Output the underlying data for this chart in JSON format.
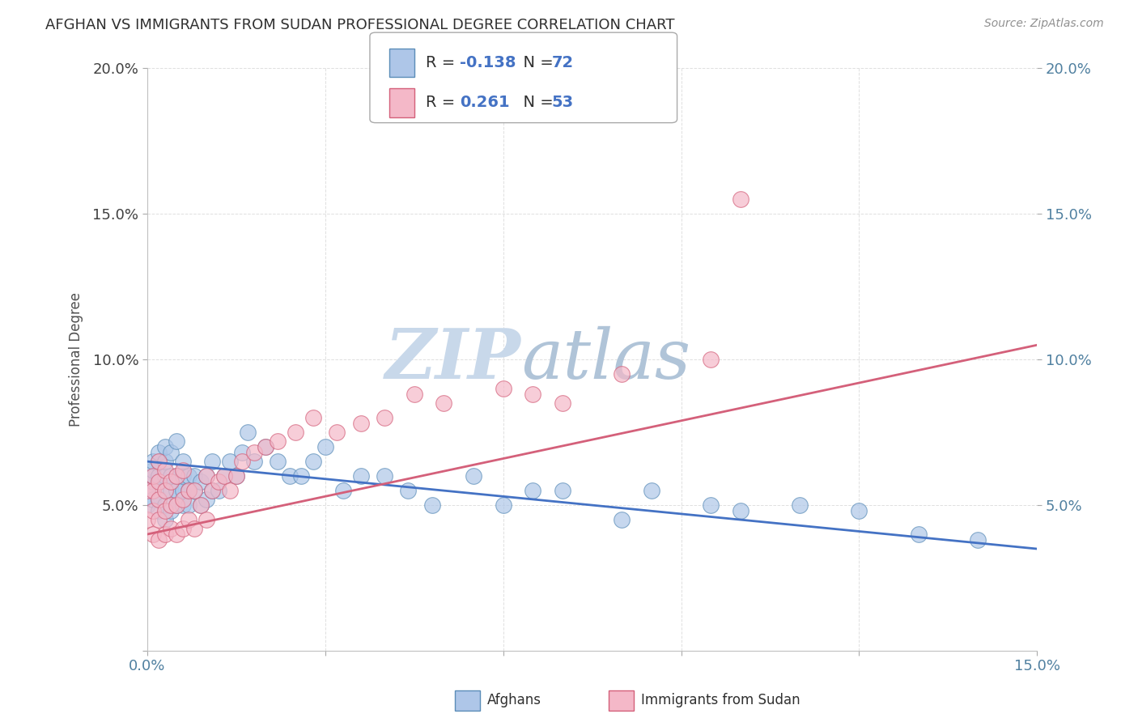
{
  "title": "AFGHAN VS IMMIGRANTS FROM SUDAN PROFESSIONAL DEGREE CORRELATION CHART",
  "source": "Source: ZipAtlas.com",
  "ylabel": "Professional Degree",
  "xlim": [
    0.0,
    0.15
  ],
  "ylim": [
    0.0,
    0.2
  ],
  "afghan_color": "#aec6e8",
  "afghan_edge_color": "#5b8db8",
  "sudan_color": "#f4b8c8",
  "sudan_edge_color": "#d4607a",
  "afghan_line_color": "#4472c4",
  "sudan_line_color": "#d4607a",
  "r_afghan": -0.138,
  "n_afghan": 72,
  "r_sudan": 0.261,
  "n_sudan": 53,
  "watermark_zip": "ZIP",
  "watermark_atlas": "atlas",
  "watermark_color_zip": "#c8d8e8",
  "watermark_color_atlas": "#b0c8e0",
  "background_color": "#ffffff",
  "grid_color": "#d8d8d8",
  "title_color": "#303030",
  "axis_label_color": "#5080a0",
  "afghan_scatter_x": [
    0.0,
    0.0,
    0.001,
    0.001,
    0.001,
    0.001,
    0.001,
    0.002,
    0.002,
    0.002,
    0.002,
    0.002,
    0.002,
    0.003,
    0.003,
    0.003,
    0.003,
    0.003,
    0.003,
    0.004,
    0.004,
    0.004,
    0.004,
    0.005,
    0.005,
    0.005,
    0.005,
    0.006,
    0.006,
    0.006,
    0.006,
    0.007,
    0.007,
    0.007,
    0.008,
    0.008,
    0.009,
    0.009,
    0.01,
    0.01,
    0.011,
    0.011,
    0.012,
    0.013,
    0.014,
    0.015,
    0.016,
    0.017,
    0.018,
    0.02,
    0.022,
    0.024,
    0.026,
    0.028,
    0.03,
    0.033,
    0.036,
    0.04,
    0.044,
    0.048,
    0.055,
    0.06,
    0.065,
    0.07,
    0.08,
    0.085,
    0.095,
    0.1,
    0.11,
    0.12,
    0.13,
    0.14
  ],
  "afghan_scatter_y": [
    0.05,
    0.055,
    0.052,
    0.058,
    0.06,
    0.062,
    0.065,
    0.048,
    0.052,
    0.058,
    0.06,
    0.065,
    0.068,
    0.045,
    0.05,
    0.055,
    0.06,
    0.065,
    0.07,
    0.048,
    0.055,
    0.06,
    0.068,
    0.05,
    0.055,
    0.06,
    0.072,
    0.05,
    0.055,
    0.06,
    0.065,
    0.05,
    0.055,
    0.06,
    0.055,
    0.06,
    0.05,
    0.058,
    0.052,
    0.06,
    0.055,
    0.065,
    0.055,
    0.06,
    0.065,
    0.06,
    0.068,
    0.075,
    0.065,
    0.07,
    0.065,
    0.06,
    0.06,
    0.065,
    0.07,
    0.055,
    0.06,
    0.06,
    0.055,
    0.05,
    0.06,
    0.05,
    0.055,
    0.055,
    0.045,
    0.055,
    0.05,
    0.048,
    0.05,
    0.048,
    0.04,
    0.038
  ],
  "sudan_scatter_x": [
    0.0,
    0.0,
    0.001,
    0.001,
    0.001,
    0.001,
    0.002,
    0.002,
    0.002,
    0.002,
    0.002,
    0.003,
    0.003,
    0.003,
    0.003,
    0.004,
    0.004,
    0.004,
    0.005,
    0.005,
    0.005,
    0.006,
    0.006,
    0.006,
    0.007,
    0.007,
    0.008,
    0.008,
    0.009,
    0.01,
    0.01,
    0.011,
    0.012,
    0.013,
    0.014,
    0.015,
    0.016,
    0.018,
    0.02,
    0.022,
    0.025,
    0.028,
    0.032,
    0.036,
    0.04,
    0.045,
    0.05,
    0.06,
    0.065,
    0.07,
    0.08,
    0.095,
    0.1
  ],
  "sudan_scatter_y": [
    0.045,
    0.055,
    0.04,
    0.048,
    0.055,
    0.06,
    0.038,
    0.045,
    0.052,
    0.058,
    0.065,
    0.04,
    0.048,
    0.055,
    0.062,
    0.042,
    0.05,
    0.058,
    0.04,
    0.05,
    0.06,
    0.042,
    0.052,
    0.062,
    0.045,
    0.055,
    0.042,
    0.055,
    0.05,
    0.045,
    0.06,
    0.055,
    0.058,
    0.06,
    0.055,
    0.06,
    0.065,
    0.068,
    0.07,
    0.072,
    0.075,
    0.08,
    0.075,
    0.078,
    0.08,
    0.088,
    0.085,
    0.09,
    0.088,
    0.085,
    0.095,
    0.1,
    0.155
  ],
  "trend_afghan_x0": 0.0,
  "trend_afghan_y0": 0.065,
  "trend_afghan_x1": 0.15,
  "trend_afghan_y1": 0.035,
  "trend_sudan_x0": 0.0,
  "trend_sudan_y0": 0.04,
  "trend_sudan_x1": 0.15,
  "trend_sudan_y1": 0.105
}
